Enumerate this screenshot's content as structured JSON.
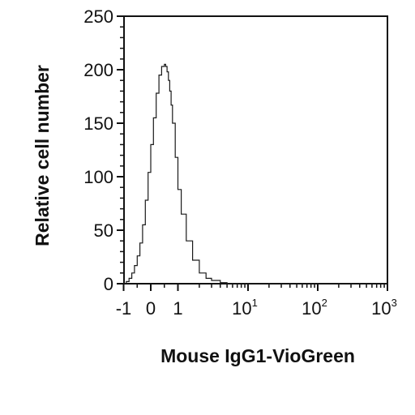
{
  "chart_data": {
    "type": "line",
    "title": "",
    "xlabel": "Mouse IgG1-VioGreen",
    "ylabel": "Relative cell number",
    "ylim": [
      0,
      250
    ],
    "y_ticks": [
      0,
      50,
      100,
      150,
      200,
      250
    ],
    "x_scale": "biexponential",
    "xlim": [
      -1,
      1000
    ],
    "x_ticks": [
      {
        "value": -1,
        "label": "-1",
        "exp": ""
      },
      {
        "value": 0,
        "label": "0",
        "exp": ""
      },
      {
        "value": 1,
        "label": "1",
        "exp": ""
      },
      {
        "value": 10,
        "label": "10",
        "exp": "1"
      },
      {
        "value": 100,
        "label": "10",
        "exp": "2"
      },
      {
        "value": 1000,
        "label": "10",
        "exp": "3"
      }
    ],
    "series": [
      {
        "color": "#1a1a1a",
        "x": [
          -1.0,
          -0.9,
          -0.8,
          -0.7,
          -0.6,
          -0.5,
          -0.4,
          -0.3,
          -0.2,
          -0.1,
          0.0,
          0.1,
          0.2,
          0.3,
          0.4,
          0.5,
          0.55,
          0.6,
          0.65,
          0.7,
          0.75,
          0.8,
          0.9,
          1.0,
          1.1,
          1.3,
          1.6,
          2.0,
          2.5,
          3.0,
          4.0,
          5.0,
          6.0,
          8.0,
          10,
          100,
          1000
        ],
        "y": [
          0,
          2,
          5,
          10,
          17,
          26,
          38,
          55,
          78,
          104,
          130,
          155,
          178,
          195,
          203,
          205,
          203,
          198,
          190,
          180,
          167,
          150,
          118,
          88,
          65,
          40,
          22,
          10,
          5,
          3,
          1,
          0,
          0,
          0,
          0,
          0,
          0
        ]
      }
    ],
    "grid": false,
    "legend": "none"
  }
}
